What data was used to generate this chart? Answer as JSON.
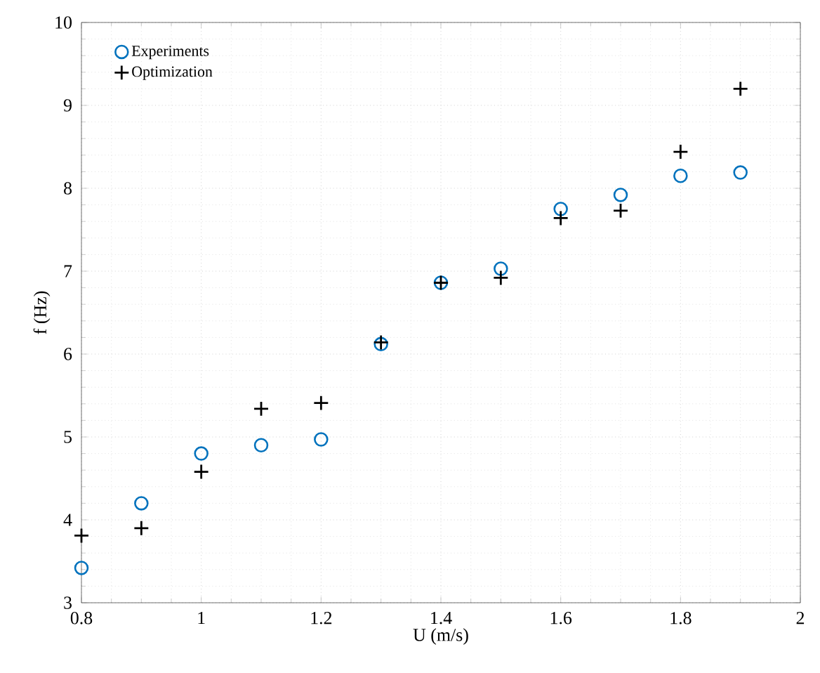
{
  "chart_data": {
    "type": "scatter",
    "xlabel": "U (m/s)",
    "ylabel": "f (Hz)",
    "x": [
      0.8,
      0.9,
      1.0,
      1.1,
      1.2,
      1.3,
      1.4,
      1.5,
      1.6,
      1.7,
      1.8,
      1.9
    ],
    "series": [
      {
        "name": "Experiments",
        "color": "#0072bd",
        "marker": "circle",
        "values": [
          3.42,
          4.2,
          4.8,
          4.9,
          4.97,
          6.12,
          6.86,
          7.03,
          7.75,
          7.92,
          8.15,
          8.19
        ]
      },
      {
        "name": "Optimization",
        "color": "#000000",
        "marker": "cross",
        "values": [
          3.81,
          3.9,
          4.58,
          5.34,
          5.41,
          6.14,
          6.86,
          6.92,
          7.64,
          7.73,
          8.44,
          9.2
        ]
      }
    ],
    "xlim": [
      0.8,
      2
    ],
    "ylim": [
      3,
      10
    ],
    "xticks": [
      0.8,
      1,
      1.2,
      1.4,
      1.6,
      1.8,
      2
    ],
    "yticks": [
      3,
      4,
      5,
      6,
      7,
      8,
      9,
      10
    ],
    "grid": true,
    "legend": "top left"
  }
}
